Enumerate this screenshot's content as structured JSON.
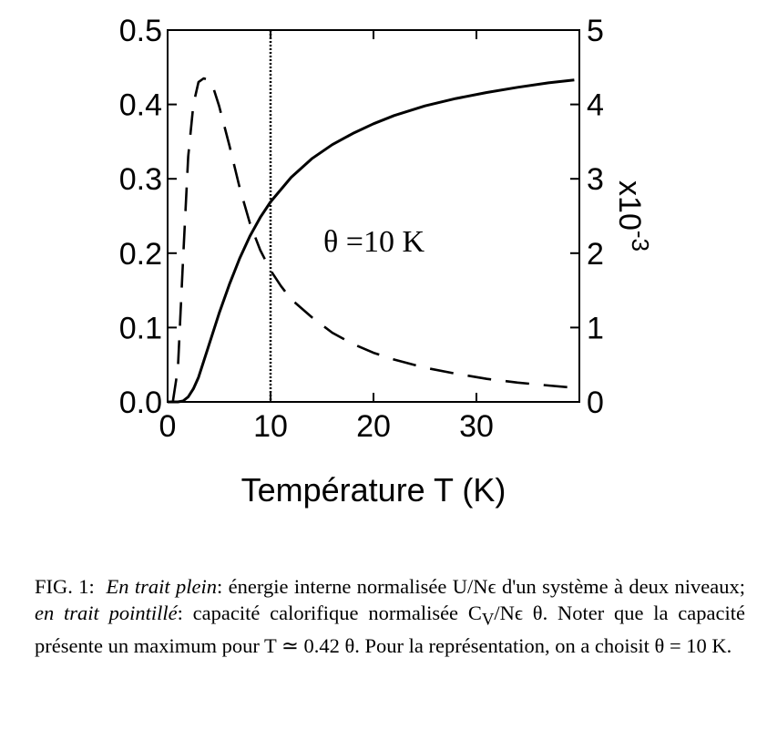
{
  "chart_data": {
    "type": "line",
    "xlabel": "Température T (K)",
    "ylabel": "",
    "y2label": "x10-3",
    "xlim": [
      0,
      40
    ],
    "ylim": [
      0,
      0.5
    ],
    "y2lim": [
      0,
      5
    ],
    "x_ticks": [
      "0",
      "10",
      "20",
      "30"
    ],
    "y_ticks": [
      "0.0",
      "0.1",
      "0.2",
      "0.3",
      "0.4",
      "0.5"
    ],
    "y2_ticks": [
      "0",
      "1",
      "2",
      "3",
      "4",
      "5"
    ],
    "grid": false,
    "vline_x": 10,
    "annotation": "θ =10 K",
    "series": [
      {
        "style": "solid",
        "axis": "left",
        "x": [
          0,
          1,
          1.5,
          2,
          2.5,
          3,
          4,
          5,
          6,
          7,
          8,
          9,
          10,
          12,
          14,
          16,
          18,
          20,
          22,
          25,
          28,
          31,
          34,
          37,
          39.5
        ],
        "y": [
          0,
          4.54e-05,
          0.00127,
          0.00669,
          0.0177,
          0.033,
          0.0759,
          0.119,
          0.158,
          0.193,
          0.223,
          0.248,
          0.269,
          0.302,
          0.327,
          0.346,
          0.361,
          0.374,
          0.385,
          0.398,
          0.408,
          0.416,
          0.423,
          0.429,
          0.433
        ]
      },
      {
        "style": "dashed",
        "axis": "right",
        "x": [
          0.5,
          1,
          1.5,
          2,
          2.5,
          3,
          3.5,
          4,
          4.5,
          5,
          6,
          7,
          8,
          9,
          10,
          11,
          12,
          14,
          16,
          18,
          20,
          22,
          25,
          28,
          31,
          34,
          37,
          39.5
        ],
        "y": [
          0.0,
          0.45,
          1.9,
          3.3,
          4.0,
          4.3,
          4.35,
          4.33,
          4.2,
          3.98,
          3.45,
          2.88,
          2.4,
          2.04,
          1.77,
          1.56,
          1.38,
          1.14,
          0.93,
          0.78,
          0.66,
          0.57,
          0.46,
          0.38,
          0.31,
          0.26,
          0.22,
          0.19
        ]
      }
    ]
  },
  "caption": {
    "fig_label": "FIG. 1:",
    "solid_phrase": "En trait plein",
    "solid_desc": ": énergie interne normalisée U/Nϵ d'un système à deux niveaux; ",
    "dotted_phrase": "en trait pointillé",
    "dotted_desc": ": capacité calorifique normalisée C",
    "cv_sub": "V",
    "after_cv": "/Nϵ θ. Noter que la capacité présente un maximum pour T ≃ 0.42 θ. Pour la représentation, on a choisit θ = 10 K."
  }
}
